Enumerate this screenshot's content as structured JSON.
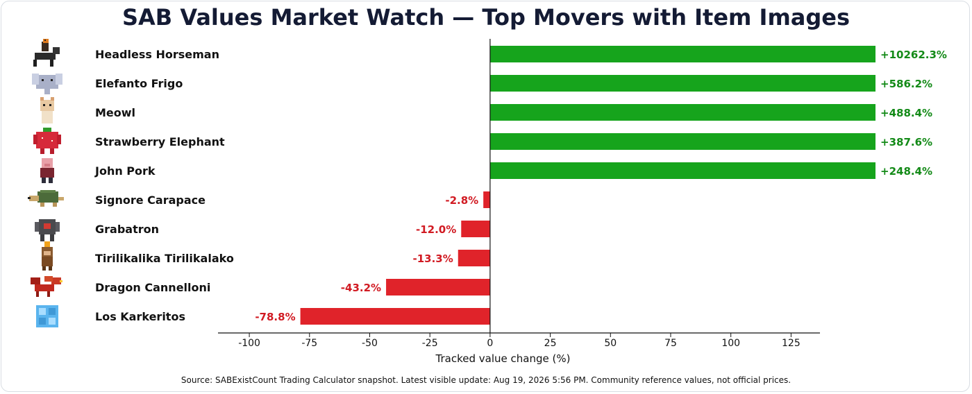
{
  "chart_data": {
    "type": "bar",
    "orientation": "horizontal",
    "title": "SAB Values Market Watch — Top Movers with Item Images",
    "xlabel": "Tracked value change (%)",
    "ylabel": "",
    "xlim": [
      -113,
      137
    ],
    "xticks": [
      -100,
      -75,
      -50,
      -25,
      0,
      25,
      50,
      75,
      100,
      125
    ],
    "xtick_labels": [
      "-100",
      "-75",
      "-50",
      "-25",
      "0",
      "25",
      "50",
      "75",
      "100",
      "125"
    ],
    "axis_clip_note": "bars beyond the axis are clipped at the axis edge",
    "categories": [
      "Headless Horseman",
      "Elefanto Frigo",
      "Meowl",
      "Strawberry Elephant",
      "John Pork",
      "Signore Carapace",
      "Grabatron",
      "Tirilikalika Tirilikalako",
      "Dragon Cannelloni",
      "Los Karkeritos"
    ],
    "values": [
      10262.3,
      586.2,
      488.4,
      387.6,
      248.4,
      -2.8,
      -12.0,
      -13.3,
      -43.2,
      -78.8
    ],
    "value_labels": [
      "+10262.3%",
      "+586.2%",
      "+488.4%",
      "+387.6%",
      "+248.4%",
      "-2.8%",
      "-12.0%",
      "-13.3%",
      "-43.2%",
      "-78.8%"
    ],
    "icons": [
      "headless-horseman-icon",
      "elephant-icon",
      "cat-icon",
      "strawberry-elephant-icon",
      "pig-icon",
      "turtle-icon",
      "robot-icon",
      "flame-monkey-icon",
      "dragon-icon",
      "crystal-cube-icon"
    ],
    "grid": false,
    "colors": {
      "positive": "#16a41c",
      "negative": "#e0232a",
      "positive_label": "#138a17",
      "negative_label": "#d11a22",
      "axis": "#111111"
    }
  },
  "footer": {
    "source": "Source: SABExistCount Trading Calculator snapshot. Latest visible update: Aug 19, 2026 5:56 PM. Community reference values, not official prices."
  }
}
